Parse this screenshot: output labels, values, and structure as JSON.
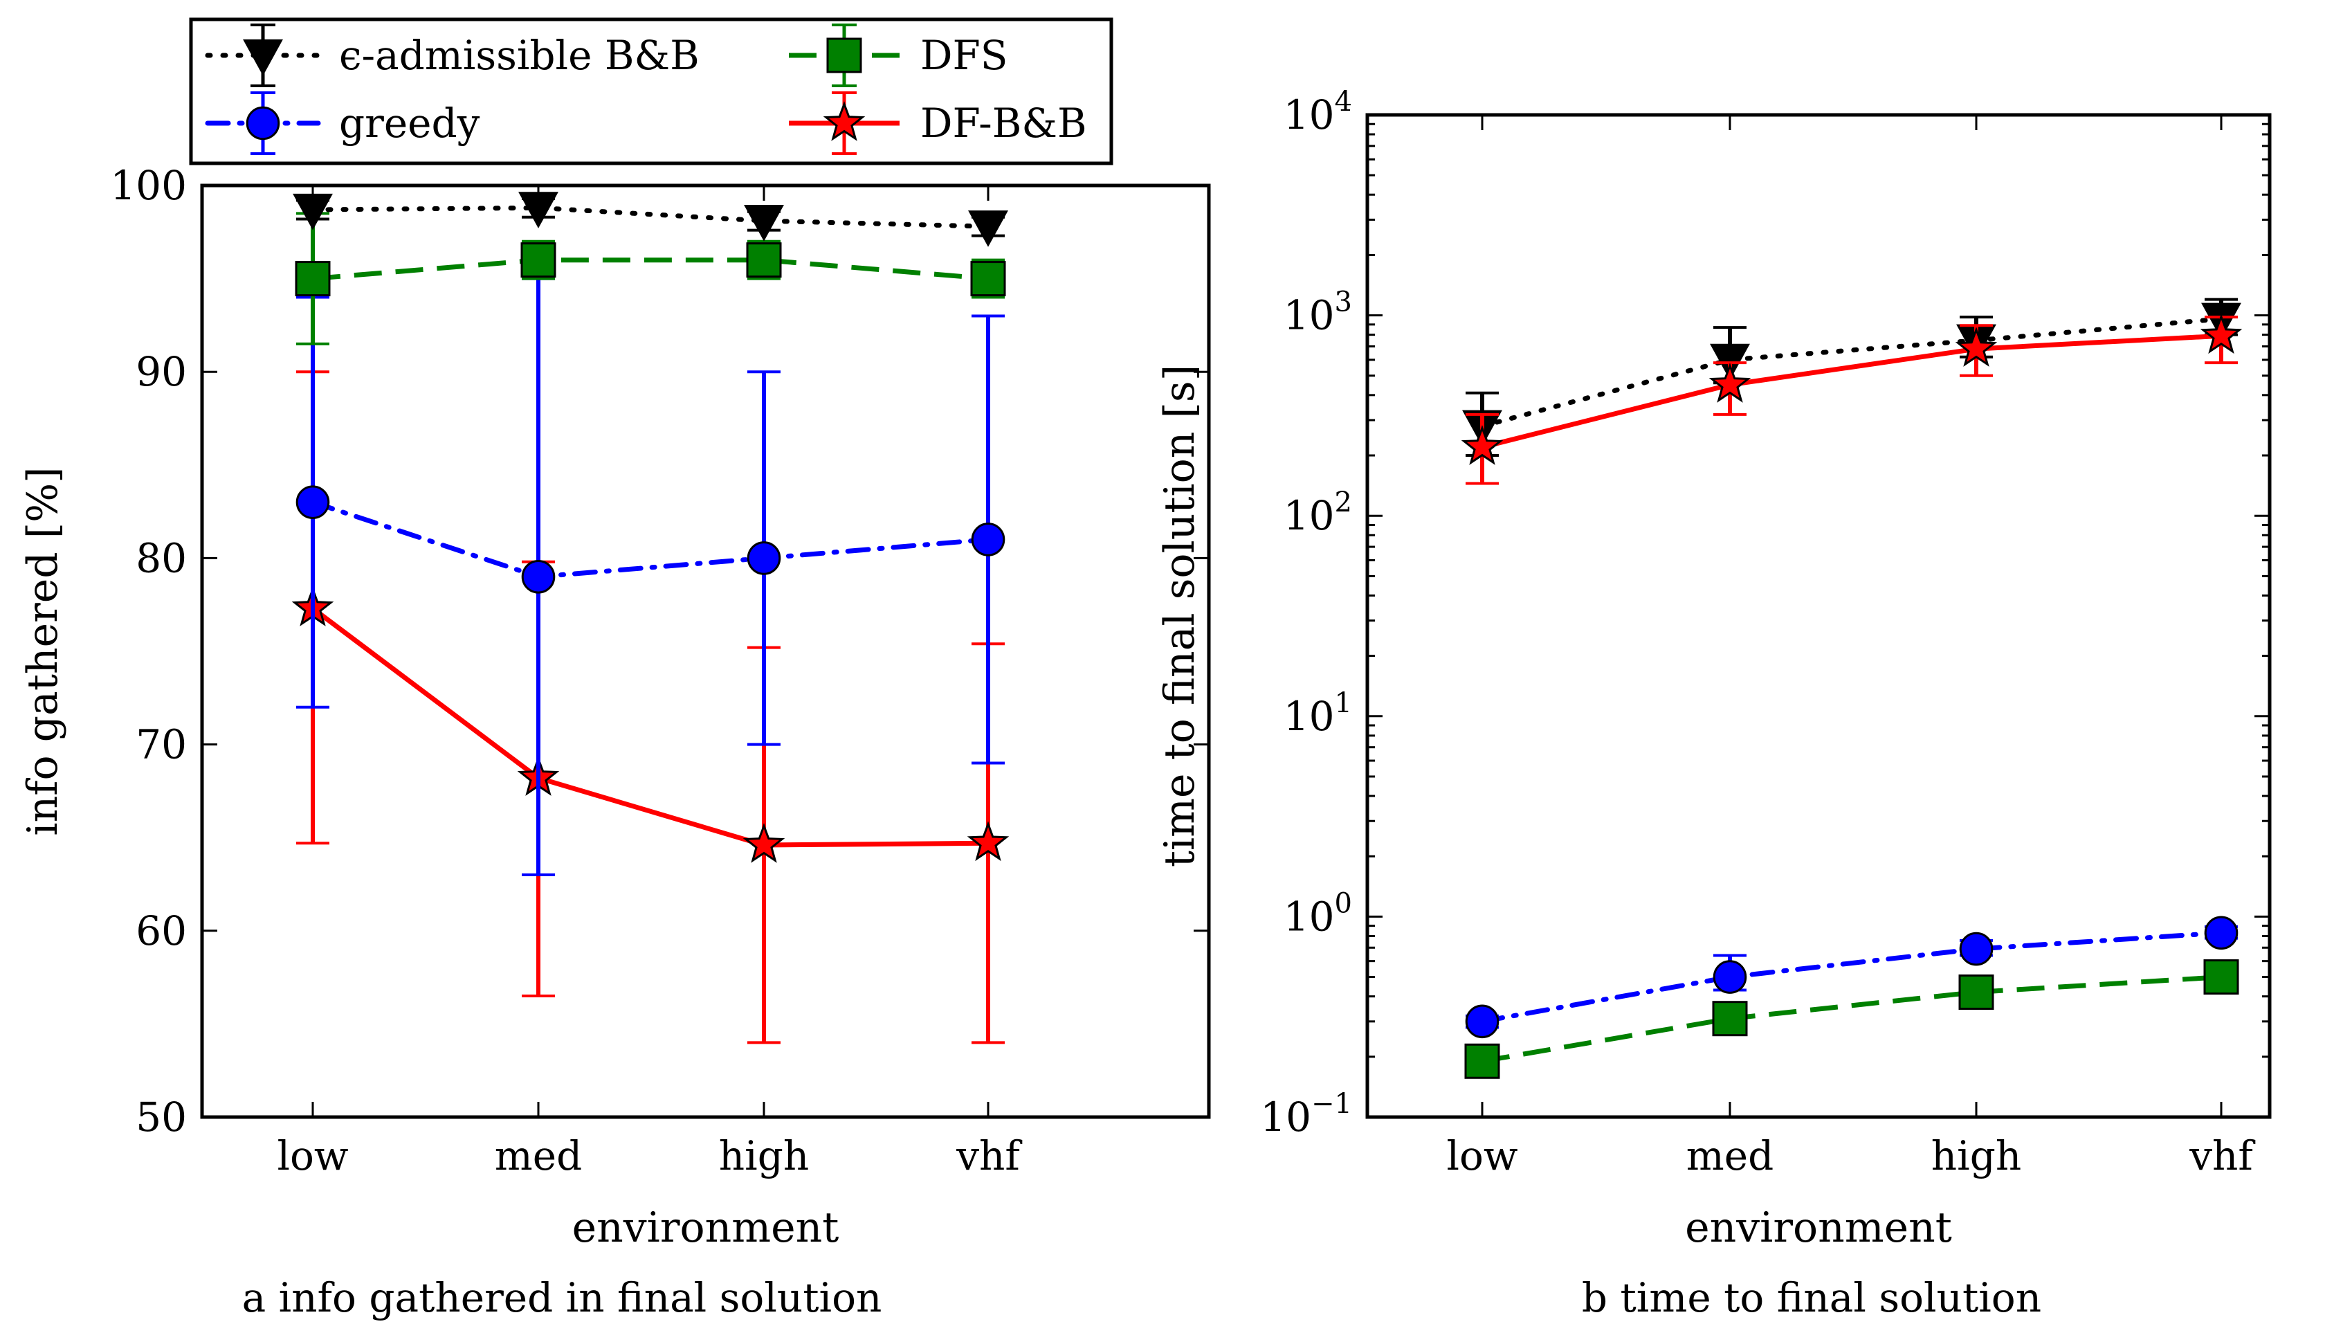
{
  "legend": {
    "entries": [
      {
        "label": "ϵ-admissible B&B",
        "series": "bb"
      },
      {
        "label": "greedy",
        "series": "greedy"
      },
      {
        "label": "DFS",
        "series": "dfs"
      },
      {
        "label": "DF-B&B",
        "series": "dfbb"
      }
    ]
  },
  "series_styles": {
    "bb": {
      "color": "#000000",
      "marker": "triangle-down",
      "dash": "4 18",
      "linecap": "round"
    },
    "greedy": {
      "color": "#0000ff",
      "marker": "circle",
      "dash": "30 16 4 16",
      "linecap": "round"
    },
    "dfs": {
      "color": "#008000",
      "marker": "square",
      "dash": "40 20",
      "linecap": "butt"
    },
    "dfbb": {
      "color": "#ff0000",
      "marker": "star",
      "dash": "",
      "linecap": "butt"
    }
  },
  "chart_data": [
    {
      "type": "line",
      "caption": "a  info gathered in final solution",
      "xlabel": "environment",
      "ylabel": "info gathered [%]",
      "categories": [
        "low",
        "med",
        "high",
        "vhf"
      ],
      "ylim": [
        50,
        100
      ],
      "yticks": [
        "50",
        "60",
        "70",
        "80",
        "90",
        "100"
      ],
      "yscale": "linear",
      "series": [
        {
          "key": "dfbb",
          "values": [
            77.3,
            68.2,
            64.6,
            64.7
          ],
          "err_low": [
            64.7,
            56.5,
            54.0,
            54.0
          ],
          "err_high": [
            90.0,
            79.8,
            75.2,
            75.4
          ]
        },
        {
          "key": "greedy",
          "values": [
            83,
            79,
            80,
            81
          ],
          "err_low": [
            72,
            63,
            70,
            69
          ],
          "err_high": [
            94,
            95,
            90,
            93
          ]
        },
        {
          "key": "dfs",
          "values": [
            95,
            96,
            96,
            95
          ],
          "err_low": [
            91.5,
            95,
            95,
            94
          ],
          "err_high": [
            98.5,
            97,
            97,
            96
          ]
        },
        {
          "key": "bb",
          "values": [
            98.7,
            98.8,
            98.1,
            97.8
          ],
          "err_low": [
            98.2,
            98.3,
            97.6,
            97.3
          ],
          "err_high": [
            99.2,
            99.3,
            98.6,
            98.3
          ]
        }
      ]
    },
    {
      "type": "line",
      "caption": "b  time to final solution",
      "xlabel": "environment",
      "ylabel": "time to final solution [s]",
      "categories": [
        "low",
        "med",
        "high",
        "vhf"
      ],
      "ylim": [
        0.1,
        10000
      ],
      "yscale": "log",
      "ytick_exponents": [
        "−1",
        "0",
        "1",
        "2",
        "3",
        "4"
      ],
      "ytick_base": "10",
      "series": [
        {
          "key": "bb",
          "values": [
            280,
            600,
            750,
            960
          ],
          "err_low": [
            200,
            460,
            620,
            800
          ],
          "err_high": [
            410,
            870,
            980,
            1200
          ]
        },
        {
          "key": "dfbb",
          "values": [
            220,
            450,
            680,
            790
          ],
          "err_low": [
            145,
            320,
            500,
            580
          ],
          "err_high": [
            320,
            580,
            890,
            980
          ]
        },
        {
          "key": "greedy",
          "values": [
            0.3,
            0.5,
            0.69,
            0.83
          ],
          "err_low": [
            0.28,
            0.43,
            0.64,
            0.78
          ],
          "err_high": [
            0.32,
            0.64,
            0.76,
            0.89
          ]
        },
        {
          "key": "dfs",
          "values": [
            0.19,
            0.31,
            0.42,
            0.5
          ],
          "err_low": [
            0.18,
            0.29,
            0.4,
            0.48
          ],
          "err_high": [
            0.2,
            0.33,
            0.44,
            0.52
          ]
        }
      ]
    }
  ]
}
